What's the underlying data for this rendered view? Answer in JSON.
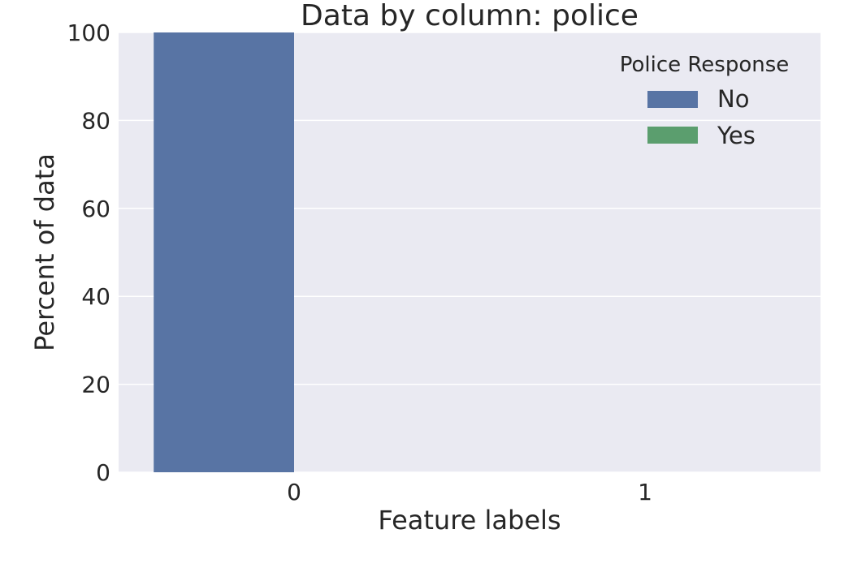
{
  "chart_data": {
    "type": "bar",
    "title": "Data by column: police",
    "xlabel": "Feature labels",
    "ylabel": "Percent of data",
    "categories": [
      "0",
      "1"
    ],
    "series": [
      {
        "name": "No",
        "values": [
          100,
          0
        ],
        "color": "#5874a4"
      },
      {
        "name": "Yes",
        "values": [
          0,
          0
        ],
        "color": "#5b9e6e"
      }
    ],
    "ylim": [
      0,
      100
    ],
    "yticks": [
      "0",
      "20",
      "40",
      "60",
      "80",
      "100"
    ],
    "legend": {
      "title": "Police Response",
      "placement": "top-right"
    },
    "grid": true,
    "background": "#eaeaf2",
    "grid_color": "#ffffff"
  }
}
